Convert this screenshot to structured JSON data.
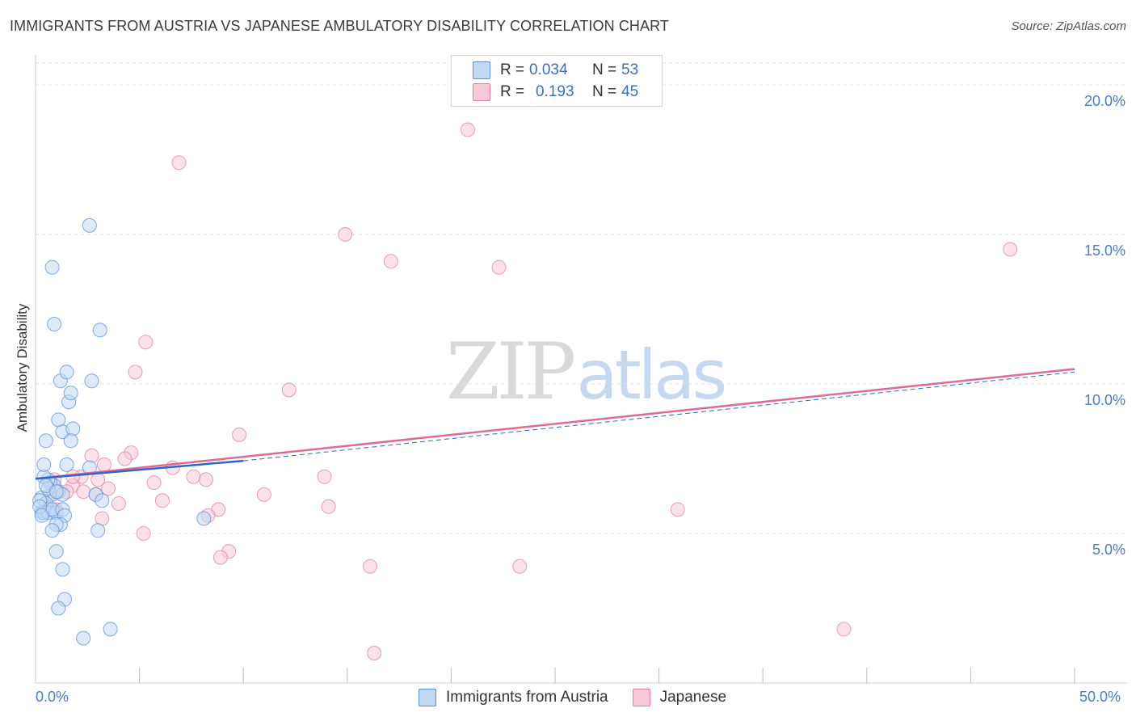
{
  "header": {
    "title": "IMMIGRANTS FROM AUSTRIA VS JAPANESE AMBULATORY DISABILITY CORRELATION CHART",
    "source": "Source: ZipAtlas.com"
  },
  "watermark": {
    "zip": "ZIP",
    "atlas": "atlas"
  },
  "legend": {
    "rows": [
      {
        "r_label": "R =",
        "r_value": "0.034",
        "n_label": "N =",
        "n_value": "53"
      },
      {
        "r_label": "R =",
        "r_value": "0.193",
        "n_label": "N =",
        "n_value": "45"
      }
    ]
  },
  "bottom_legend": {
    "series_a": "Immigrants from Austria",
    "series_b": "Japanese"
  },
  "x_axis": {
    "min_label": "0.0%",
    "max_label": "50.0%"
  },
  "chart_data": {
    "type": "scatter",
    "title": "IMMIGRANTS FROM AUSTRIA VS JAPANESE AMBULATORY DISABILITY CORRELATION CHART",
    "xlabel": "",
    "ylabel": "Ambulatory Disability",
    "xlim": [
      0,
      50
    ],
    "ylim": [
      0,
      21
    ],
    "y_ticks": [
      {
        "value": 5,
        "label": "5.0%"
      },
      {
        "value": 10,
        "label": "10.0%"
      },
      {
        "value": 15,
        "label": "15.0%"
      },
      {
        "value": 20,
        "label": "20.0%"
      }
    ],
    "x_tick_values": [
      5,
      10,
      15,
      20,
      25,
      30,
      35,
      40,
      45,
      50
    ],
    "colors": {
      "austria": "#5b8fd6",
      "japanese": "#e27fa0",
      "austria_fill": "#c3d8f5",
      "japanese_fill": "#f8c9d7",
      "austria_line": "#2f66c8",
      "japanese_line": "#e06a95"
    },
    "series": [
      {
        "name": "Immigrants from Austria",
        "r": 0.034,
        "n": 53,
        "points": [
          [
            0.8,
            6.3
          ],
          [
            0.3,
            6.2
          ],
          [
            0.5,
            6.0
          ],
          [
            0.6,
            5.8
          ],
          [
            0.3,
            5.7
          ],
          [
            0.4,
            5.7
          ],
          [
            0.6,
            5.7
          ],
          [
            1.0,
            5.7
          ],
          [
            0.8,
            5.8
          ],
          [
            0.2,
            6.1
          ],
          [
            0.9,
            6.6
          ],
          [
            0.7,
            6.7
          ],
          [
            0.6,
            6.8
          ],
          [
            0.4,
            6.9
          ],
          [
            1.1,
            6.4
          ],
          [
            1.3,
            6.3
          ],
          [
            0.4,
            7.3
          ],
          [
            0.5,
            8.1
          ],
          [
            1.1,
            8.8
          ],
          [
            1.3,
            8.4
          ],
          [
            1.8,
            8.5
          ],
          [
            1.6,
            9.4
          ],
          [
            1.7,
            9.7
          ],
          [
            1.2,
            10.1
          ],
          [
            1.5,
            10.4
          ],
          [
            2.7,
            10.1
          ],
          [
            0.9,
            12.0
          ],
          [
            3.1,
            11.8
          ],
          [
            0.8,
            13.9
          ],
          [
            2.6,
            15.3
          ],
          [
            1.5,
            7.3
          ],
          [
            2.6,
            7.2
          ],
          [
            1.7,
            8.1
          ],
          [
            2.9,
            6.3
          ],
          [
            3.2,
            6.1
          ],
          [
            1.3,
            5.8
          ],
          [
            1.4,
            5.6
          ],
          [
            1.2,
            5.3
          ],
          [
            1.0,
            5.3
          ],
          [
            0.8,
            5.1
          ],
          [
            3.0,
            5.1
          ],
          [
            8.1,
            5.5
          ],
          [
            1.0,
            4.4
          ],
          [
            1.3,
            3.8
          ],
          [
            1.4,
            2.8
          ],
          [
            1.1,
            2.5
          ],
          [
            3.6,
            1.8
          ],
          [
            2.3,
            1.5
          ],
          [
            0.6,
            6.5
          ],
          [
            0.2,
            5.9
          ],
          [
            0.5,
            6.6
          ],
          [
            1.0,
            6.4
          ],
          [
            0.3,
            5.6
          ]
        ],
        "trend": {
          "x0": 0,
          "y0": 6.83,
          "x1": 10,
          "y1": 7.43
        }
      },
      {
        "name": "Japanese",
        "r": 0.193,
        "n": 45,
        "points": [
          [
            20.8,
            18.5
          ],
          [
            6.9,
            17.4
          ],
          [
            14.9,
            15.0
          ],
          [
            17.1,
            14.1
          ],
          [
            22.3,
            13.9
          ],
          [
            46.9,
            14.5
          ],
          [
            5.3,
            11.4
          ],
          [
            4.8,
            10.4
          ],
          [
            12.2,
            9.8
          ],
          [
            9.8,
            8.3
          ],
          [
            4.6,
            7.7
          ],
          [
            4.3,
            7.5
          ],
          [
            2.7,
            7.6
          ],
          [
            3.3,
            7.3
          ],
          [
            6.6,
            7.2
          ],
          [
            7.6,
            6.9
          ],
          [
            2.2,
            6.9
          ],
          [
            3.0,
            6.8
          ],
          [
            13.9,
            6.9
          ],
          [
            8.2,
            6.8
          ],
          [
            5.7,
            6.7
          ],
          [
            1.8,
            6.6
          ],
          [
            3.5,
            6.5
          ],
          [
            1.5,
            6.4
          ],
          [
            2.9,
            6.3
          ],
          [
            11.0,
            6.3
          ],
          [
            6.1,
            6.1
          ],
          [
            4.0,
            6.0
          ],
          [
            14.1,
            5.9
          ],
          [
            8.8,
            5.8
          ],
          [
            30.9,
            5.8
          ],
          [
            8.3,
            5.6
          ],
          [
            3.2,
            5.5
          ],
          [
            5.2,
            5.0
          ],
          [
            9.3,
            4.4
          ],
          [
            8.9,
            4.2
          ],
          [
            16.1,
            3.9
          ],
          [
            23.3,
            3.9
          ],
          [
            38.9,
            1.8
          ],
          [
            16.3,
            1.0
          ],
          [
            1.0,
            5.8
          ],
          [
            0.7,
            6.3
          ],
          [
            0.9,
            6.8
          ],
          [
            2.3,
            6.4
          ],
          [
            1.8,
            6.9
          ]
        ],
        "trend": {
          "x0": 0,
          "y0": 6.83,
          "x1": 50,
          "y1": 10.5
        },
        "trend_dashed_extension": {
          "x0": 10,
          "y0": 7.43,
          "x1": 50,
          "y1": 10.4
        }
      }
    ]
  }
}
